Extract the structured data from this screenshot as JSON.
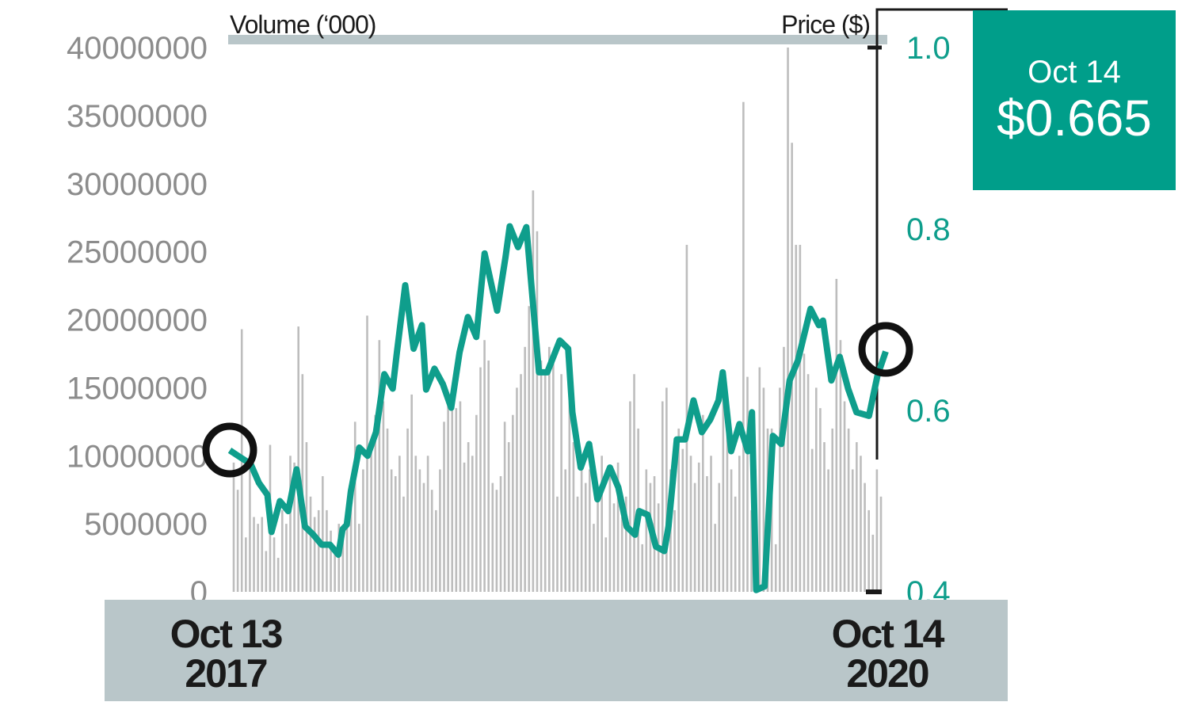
{
  "chart_data": {
    "type": "bar+line",
    "left_axis_label": "Volume (‘000)",
    "right_axis_label": "Price ($)",
    "left_ticks": [
      "0",
      "5000000",
      "10000000",
      "15000000",
      "20000000",
      "25000000",
      "30000000",
      "35000000",
      "40000000"
    ],
    "left_ylim": [
      0,
      40000000
    ],
    "right_ticks": [
      "0.4",
      "0.6",
      "0.8",
      "1.0"
    ],
    "right_ylim": [
      0.4,
      1.0
    ],
    "x_start_label": [
      "Oct 13",
      "2017"
    ],
    "x_end_label": [
      "Oct 14",
      "2020"
    ],
    "volume": [
      9500000,
      7500000,
      19300000,
      4000000,
      9000000,
      5500000,
      5000000,
      5500000,
      3000000,
      10800000,
      4000000,
      2500000,
      6000000,
      5000000,
      10000000,
      9500000,
      19500000,
      16000000,
      11000000,
      7000000,
      5500000,
      6000000,
      8500000,
      6000000,
      4500000,
      3000000,
      5000000,
      4000000,
      5000000,
      7000000,
      12500000,
      5000000,
      9000000,
      20300000,
      11000000,
      13000000,
      18500000,
      14000000,
      12000000,
      9000000,
      8500000,
      10000000,
      7000000,
      12000000,
      14500000,
      10000000,
      9000000,
      8000000,
      10000000,
      7500000,
      6000000,
      9000000,
      12500000,
      14000000,
      15000000,
      13500000,
      14000000,
      9500000,
      11000000,
      10000000,
      13000000,
      16500000,
      18500000,
      17000000,
      8000000,
      7500000,
      8500000,
      12500000,
      11000000,
      13000000,
      15000000,
      16000000,
      18000000,
      21000000,
      29500000,
      26500000,
      17000000,
      16000000,
      18000000,
      17000000,
      7000000,
      16000000,
      9000000,
      14000000,
      11000000,
      7000000,
      10000000,
      8000000,
      9000000,
      5000000,
      7500000,
      10000000,
      4000000,
      9000000,
      6500000,
      9500000,
      5500000,
      7000000,
      14000000,
      16000000,
      12000000,
      3500000,
      9000000,
      8000000,
      8500000,
      6500000,
      14000000,
      15000000,
      9000000,
      6000000,
      12000000,
      10500000,
      25500000,
      10000000,
      8000000,
      9500000,
      13000000,
      8500000,
      10000000,
      5000000,
      8000000,
      15500000,
      13000000,
      9000000,
      7000000,
      10000000,
      36000000,
      15800000,
      6000000,
      9000000,
      16500000,
      15000000,
      12000000,
      12000000,
      3500000,
      15000000,
      18000000,
      40000000,
      33000000,
      25500000,
      25500000,
      17500000,
      16000000,
      10500000,
      15000000,
      13500000,
      11000000,
      9000000,
      12000000,
      23000000,
      18500000,
      14000000,
      12000000,
      9000000,
      11000000,
      10000000,
      8000000,
      6000000,
      4200000,
      9000000,
      7000000
    ],
    "price_weeks": [
      0,
      2,
      5,
      7,
      9,
      10,
      12,
      14,
      16,
      18,
      20,
      22,
      24,
      26,
      27,
      28,
      29,
      31,
      33,
      35,
      37,
      39,
      40,
      42,
      44,
      46,
      47,
      49,
      51,
      53,
      55,
      57,
      59,
      61,
      64,
      66,
      67,
      69,
      71,
      74,
      76,
      79,
      81,
      82,
      84,
      86,
      87,
      88,
      91,
      93,
      95,
      97,
      98,
      100,
      102,
      104,
      105,
      107,
      109,
      111,
      113,
      115,
      117,
      118,
      120,
      122,
      124,
      125,
      126,
      128,
      130,
      132,
      134,
      136,
      139,
      141,
      142,
      144,
      146,
      148,
      150,
      153,
      155,
      157
    ],
    "price": [
      0.556,
      0.55,
      0.541,
      0.52,
      0.507,
      0.466,
      0.5,
      0.489,
      0.535,
      0.472,
      0.463,
      0.452,
      0.452,
      0.441,
      0.469,
      0.474,
      0.511,
      0.559,
      0.55,
      0.576,
      0.64,
      0.624,
      0.664,
      0.738,
      0.668,
      0.694,
      0.623,
      0.646,
      0.629,
      0.603,
      0.664,
      0.703,
      0.681,
      0.773,
      0.71,
      0.769,
      0.803,
      0.78,
      0.802,
      0.642,
      0.642,
      0.677,
      0.668,
      0.598,
      0.537,
      0.563,
      0.533,
      0.502,
      0.537,
      0.515,
      0.472,
      0.463,
      0.489,
      0.485,
      0.45,
      0.445,
      0.472,
      0.568,
      0.568,
      0.611,
      0.576,
      0.59,
      0.611,
      0.642,
      0.555,
      0.585,
      0.555,
      0.598,
      0.402,
      0.406,
      0.572,
      0.563,
      0.633,
      0.655,
      0.712,
      0.694,
      0.699,
      0.633,
      0.659,
      0.624,
      0.598,
      0.594,
      0.638,
      0.665
    ],
    "callout": {
      "date": "Oct 14",
      "price": "$0.665"
    },
    "colors": {
      "price": "#0f9e8c",
      "volume": "#bdbdbd",
      "callout_bg": "#009e8a",
      "band": "#b9c6c9"
    }
  }
}
